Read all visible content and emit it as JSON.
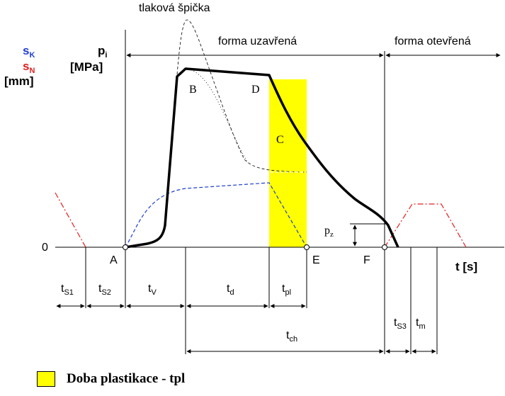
{
  "diagram": {
    "peak_label": "tlaková špička",
    "mold_closed": "forma uzavřená",
    "mold_open": "forma otevřená",
    "left_axis": {
      "s_k": "s",
      "s_k_sub": "K",
      "s_n": "s",
      "s_n_sub": "N",
      "unit": "[mm]"
    },
    "pressure_axis": {
      "symbol": "p",
      "symbol_sub": "i",
      "unit": "[MPa]"
    },
    "zero": "0",
    "points": {
      "A": "A",
      "B": "B",
      "C": "C",
      "D": "D",
      "E": "E",
      "F": "F"
    },
    "pz": {
      "symbol": "p",
      "sub": "z"
    },
    "time_axis": "t [s]",
    "intervals": [
      {
        "symbol": "t",
        "sub": "S1"
      },
      {
        "symbol": "t",
        "sub": "S2"
      },
      {
        "symbol": "t",
        "sub": "V"
      },
      {
        "symbol": "t",
        "sub": "d"
      },
      {
        "symbol": "t",
        "sub": "pl"
      },
      {
        "symbol": "t",
        "sub": "ch"
      },
      {
        "symbol": "t",
        "sub": "S3"
      },
      {
        "symbol": "t",
        "sub": "m"
      }
    ],
    "colors": {
      "s_k": "#1f3fd0",
      "s_n": "#e02020",
      "highlight": "#ffff00",
      "curve": "#000000"
    }
  },
  "legend": {
    "label": "Doba plastikace - tpl"
  }
}
